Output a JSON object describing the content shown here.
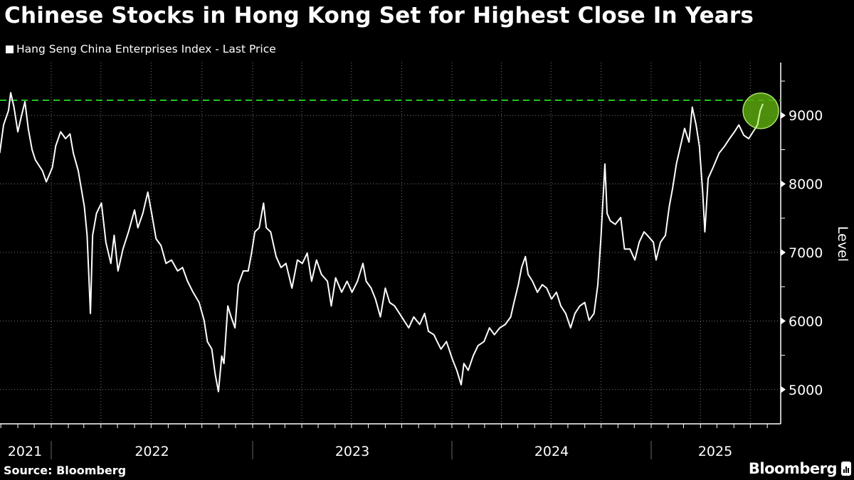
{
  "title": "Chinese Stocks in Hong Kong Set for Highest Close In Years",
  "source": "Source: Bloomberg",
  "logo": "Bloomberg",
  "colors": {
    "background": "#000000",
    "line": "#ffffff",
    "reference_line": "#22c41e",
    "highlight_circle": "#5aa70e"
  },
  "chart_data": {
    "type": "line",
    "title": "Chinese Stocks in Hong Kong Set for Highest Close In Years",
    "ylabel": "Level",
    "yaxis_position": "right",
    "ylim": [
      4500,
      9770
    ],
    "yticks": [
      5000,
      6000,
      7000,
      8000,
      9000
    ],
    "xticks": [
      "2021",
      "2022",
      "2023",
      "2024",
      "2025"
    ],
    "grid": true,
    "legend_placement": "top-left",
    "reference_line": {
      "value": 9220,
      "style": "dashed",
      "color": "#22c41e"
    },
    "highlight": {
      "date": "2025-07-24",
      "shape": "circle",
      "color": "#5aa70e"
    },
    "series": [
      {
        "name": "Hang Seng China Enterprises Index - Last Price",
        "points": [
          [
            "2021-09-29",
            8450
          ],
          [
            "2021-10-06",
            8860
          ],
          [
            "2021-10-15",
            9070
          ],
          [
            "2021-10-19",
            9330
          ],
          [
            "2021-10-25",
            9120
          ],
          [
            "2021-11-01",
            8760
          ],
          [
            "2021-11-07",
            8970
          ],
          [
            "2021-11-14",
            9200
          ],
          [
            "2021-11-20",
            8810
          ],
          [
            "2021-11-27",
            8500
          ],
          [
            "2021-12-03",
            8350
          ],
          [
            "2021-12-16",
            8190
          ],
          [
            "2021-12-23",
            8030
          ],
          [
            "2022-01-03",
            8240
          ],
          [
            "2022-01-09",
            8550
          ],
          [
            "2022-01-18",
            8760
          ],
          [
            "2022-01-27",
            8660
          ],
          [
            "2022-02-04",
            8730
          ],
          [
            "2022-02-10",
            8450
          ],
          [
            "2022-02-19",
            8190
          ],
          [
            "2022-03-02",
            7670
          ],
          [
            "2022-03-07",
            7250
          ],
          [
            "2022-03-13",
            6110
          ],
          [
            "2022-03-17",
            7250
          ],
          [
            "2022-03-24",
            7570
          ],
          [
            "2022-04-02",
            7720
          ],
          [
            "2022-04-10",
            7150
          ],
          [
            "2022-04-19",
            6840
          ],
          [
            "2022-04-25",
            7250
          ],
          [
            "2022-05-02",
            6730
          ],
          [
            "2022-05-11",
            7050
          ],
          [
            "2022-05-21",
            7300
          ],
          [
            "2022-06-01",
            7620
          ],
          [
            "2022-06-07",
            7360
          ],
          [
            "2022-06-16",
            7570
          ],
          [
            "2022-06-25",
            7880
          ],
          [
            "2022-07-02",
            7570
          ],
          [
            "2022-07-10",
            7200
          ],
          [
            "2022-07-19",
            7100
          ],
          [
            "2022-07-28",
            6840
          ],
          [
            "2022-08-07",
            6890
          ],
          [
            "2022-08-18",
            6730
          ],
          [
            "2022-08-27",
            6780
          ],
          [
            "2022-09-05",
            6580
          ],
          [
            "2022-09-15",
            6420
          ],
          [
            "2022-09-26",
            6270
          ],
          [
            "2022-10-05",
            6010
          ],
          [
            "2022-10-11",
            5700
          ],
          [
            "2022-10-19",
            5590
          ],
          [
            "2022-10-25",
            5230
          ],
          [
            "2022-10-31",
            4970
          ],
          [
            "2022-11-06",
            5490
          ],
          [
            "2022-11-10",
            5380
          ],
          [
            "2022-11-17",
            6220
          ],
          [
            "2022-11-23",
            6060
          ],
          [
            "2022-11-30",
            5900
          ],
          [
            "2022-12-06",
            6530
          ],
          [
            "2022-12-15",
            6730
          ],
          [
            "2022-12-24",
            6730
          ],
          [
            "2022-12-30",
            6990
          ],
          [
            "2023-01-05",
            7300
          ],
          [
            "2023-01-13",
            7360
          ],
          [
            "2023-01-21",
            7720
          ],
          [
            "2023-01-26",
            7360
          ],
          [
            "2023-02-03",
            7300
          ],
          [
            "2023-02-13",
            6940
          ],
          [
            "2023-02-22",
            6780
          ],
          [
            "2023-03-03",
            6840
          ],
          [
            "2023-03-14",
            6480
          ],
          [
            "2023-03-24",
            6890
          ],
          [
            "2023-04-02",
            6840
          ],
          [
            "2023-04-11",
            6990
          ],
          [
            "2023-04-19",
            6580
          ],
          [
            "2023-04-28",
            6890
          ],
          [
            "2023-05-07",
            6680
          ],
          [
            "2023-05-18",
            6580
          ],
          [
            "2023-05-25",
            6220
          ],
          [
            "2023-06-02",
            6630
          ],
          [
            "2023-06-13",
            6420
          ],
          [
            "2023-06-23",
            6580
          ],
          [
            "2023-07-02",
            6420
          ],
          [
            "2023-07-12",
            6580
          ],
          [
            "2023-07-22",
            6840
          ],
          [
            "2023-07-28",
            6580
          ],
          [
            "2023-08-06",
            6480
          ],
          [
            "2023-08-14",
            6320
          ],
          [
            "2023-08-23",
            6060
          ],
          [
            "2023-09-01",
            6480
          ],
          [
            "2023-09-09",
            6270
          ],
          [
            "2023-09-18",
            6220
          ],
          [
            "2023-09-27",
            6110
          ],
          [
            "2023-10-05",
            6010
          ],
          [
            "2023-10-14",
            5900
          ],
          [
            "2023-10-23",
            6060
          ],
          [
            "2023-11-03",
            5950
          ],
          [
            "2023-11-12",
            6110
          ],
          [
            "2023-11-19",
            5850
          ],
          [
            "2023-11-29",
            5800
          ],
          [
            "2023-12-05",
            5700
          ],
          [
            "2023-12-12",
            5590
          ],
          [
            "2023-12-22",
            5700
          ],
          [
            "2024-01-02",
            5440
          ],
          [
            "2024-01-10",
            5280
          ],
          [
            "2024-01-18",
            5070
          ],
          [
            "2024-01-23",
            5380
          ],
          [
            "2024-01-31",
            5280
          ],
          [
            "2024-02-09",
            5490
          ],
          [
            "2024-02-18",
            5640
          ],
          [
            "2024-02-29",
            5700
          ],
          [
            "2024-03-10",
            5900
          ],
          [
            "2024-03-19",
            5800
          ],
          [
            "2024-03-29",
            5900
          ],
          [
            "2024-04-08",
            5950
          ],
          [
            "2024-04-18",
            6060
          ],
          [
            "2024-04-24",
            6270
          ],
          [
            "2024-05-02",
            6530
          ],
          [
            "2024-05-08",
            6780
          ],
          [
            "2024-05-15",
            6940
          ],
          [
            "2024-05-20",
            6680
          ],
          [
            "2024-05-28",
            6580
          ],
          [
            "2024-06-06",
            6420
          ],
          [
            "2024-06-15",
            6530
          ],
          [
            "2024-06-23",
            6480
          ],
          [
            "2024-07-02",
            6320
          ],
          [
            "2024-07-11",
            6420
          ],
          [
            "2024-07-19",
            6220
          ],
          [
            "2024-07-28",
            6110
          ],
          [
            "2024-08-06",
            5900
          ],
          [
            "2024-08-14",
            6110
          ],
          [
            "2024-08-23",
            6220
          ],
          [
            "2024-09-01",
            6270
          ],
          [
            "2024-09-09",
            6010
          ],
          [
            "2024-09-18",
            6110
          ],
          [
            "2024-09-25",
            6530
          ],
          [
            "2024-10-01",
            7250
          ],
          [
            "2024-10-08",
            8290
          ],
          [
            "2024-10-12",
            7570
          ],
          [
            "2024-10-18",
            7460
          ],
          [
            "2024-10-27",
            7410
          ],
          [
            "2024-11-06",
            7510
          ],
          [
            "2024-11-13",
            7050
          ],
          [
            "2024-11-23",
            7050
          ],
          [
            "2024-12-02",
            6890
          ],
          [
            "2024-12-10",
            7150
          ],
          [
            "2024-12-19",
            7300
          ],
          [
            "2024-12-25",
            7250
          ],
          [
            "2025-01-05",
            7150
          ],
          [
            "2025-01-10",
            6890
          ],
          [
            "2025-01-18",
            7150
          ],
          [
            "2025-01-27",
            7250
          ],
          [
            "2025-02-03",
            7670
          ],
          [
            "2025-02-09",
            7930
          ],
          [
            "2025-02-16",
            8290
          ],
          [
            "2025-02-22",
            8500
          ],
          [
            "2025-03-03",
            8810
          ],
          [
            "2025-03-11",
            8610
          ],
          [
            "2025-03-17",
            9120
          ],
          [
            "2025-03-24",
            8860
          ],
          [
            "2025-03-30",
            8550
          ],
          [
            "2025-04-05",
            7880
          ],
          [
            "2025-04-09",
            7300
          ],
          [
            "2025-04-15",
            8080
          ],
          [
            "2025-04-24",
            8240
          ],
          [
            "2025-05-05",
            8450
          ],
          [
            "2025-05-15",
            8550
          ],
          [
            "2025-05-24",
            8660
          ],
          [
            "2025-06-02",
            8760
          ],
          [
            "2025-06-10",
            8860
          ],
          [
            "2025-06-19",
            8710
          ],
          [
            "2025-06-28",
            8660
          ],
          [
            "2025-07-06",
            8760
          ],
          [
            "2025-07-14",
            8860
          ],
          [
            "2025-07-19",
            9070
          ],
          [
            "2025-07-24",
            9170
          ]
        ]
      }
    ]
  }
}
